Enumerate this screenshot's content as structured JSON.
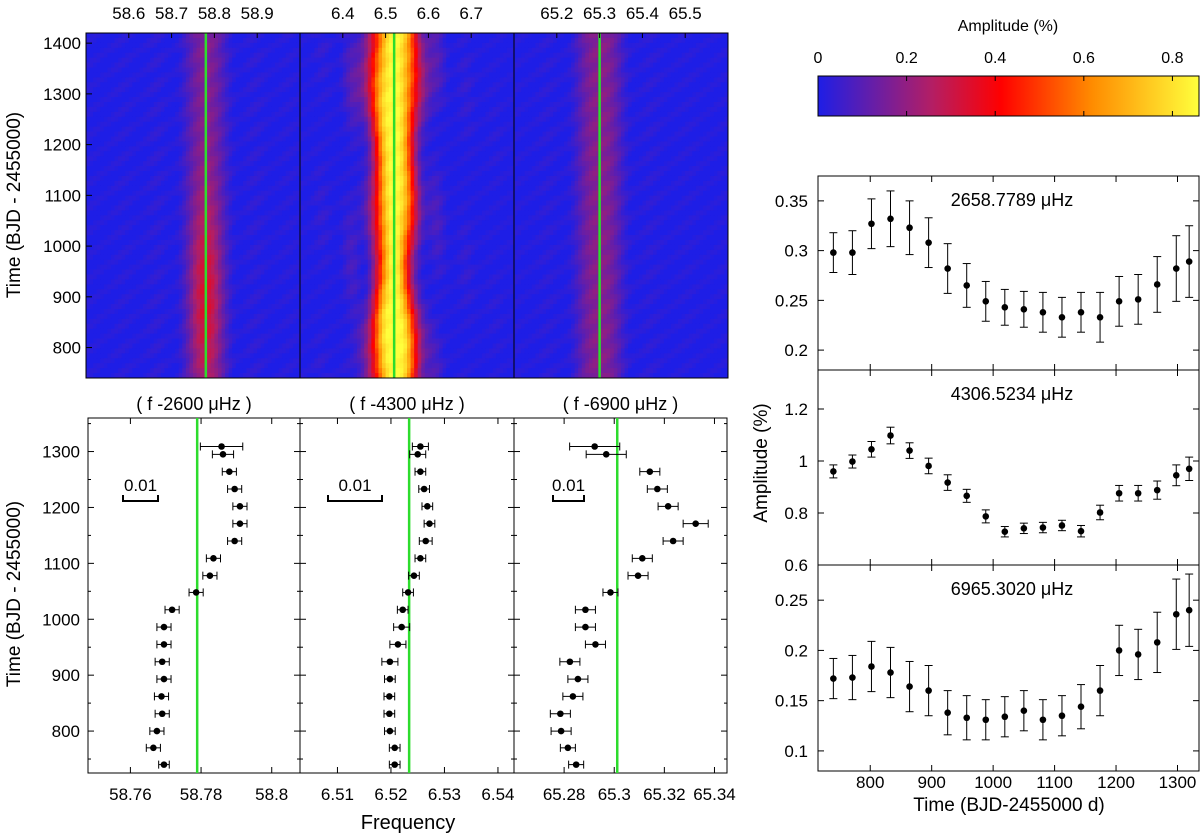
{
  "figure": {
    "left_ylabel_top": "Time (BJD - 2455000)",
    "left_ylabel_bottom": "Time (BJD - 2455000)",
    "bottom_xlabel": "Frequency",
    "right_ylabel": "Amplitude (%)",
    "right_xlabel": "Time (BJD-2455000 d)",
    "colorbar": {
      "title": "Amplitude (%)",
      "ticks": [
        "0",
        "0.2",
        "0.4",
        "0.6",
        "0.8"
      ],
      "range": [
        0,
        0.86
      ],
      "colors": {
        "low": "#1e1ee6",
        "mid1": "#b41e64",
        "mid2": "#ff0000",
        "mid3": "#ff8c00",
        "high": "#ffff3c"
      }
    },
    "line_color": "#2ddc2d"
  },
  "chart_data": [
    {
      "type": "heatmap",
      "panel": "heatmap-1",
      "x_ticks": [
        "58.6",
        "58.7",
        "58.8",
        "58.9"
      ],
      "xlim": [
        58.5,
        59.0
      ],
      "y_ticks": [
        "1400",
        "1300",
        "1200",
        "1100",
        "1000",
        "900",
        "800"
      ],
      "ylim": [
        740,
        1420
      ],
      "peak_frequency": 58.78,
      "peak_amplitude": 0.33
    },
    {
      "type": "heatmap",
      "panel": "heatmap-2",
      "x_ticks": [
        "6.4",
        "6.5",
        "6.6",
        "6.7"
      ],
      "xlim": [
        6.3,
        6.8
      ],
      "peak_frequency": 6.52,
      "peak_amplitude": 0.86
    },
    {
      "type": "heatmap",
      "panel": "heatmap-3",
      "x_ticks": [
        "65.2",
        "65.3",
        "65.4",
        "65.5"
      ],
      "xlim": [
        65.1,
        65.6
      ],
      "peak_frequency": 65.3,
      "peak_amplitude": 0.22
    },
    {
      "type": "scatter",
      "panel": "freq-1",
      "title": "( f -2600 μHz )",
      "x_ticks": [
        "58.76",
        "58.78",
        "58.8"
      ],
      "xlim": [
        58.748,
        58.808
      ],
      "y_ticks": [
        "1300",
        "1200",
        "1100",
        "1000",
        "900",
        "800"
      ],
      "ylim": [
        725,
        1360
      ],
      "line_x": 58.7789,
      "scale_label": "0.01",
      "time": [
        740,
        770,
        800,
        831,
        862,
        893,
        924,
        955,
        986,
        1017,
        1048,
        1078,
        1109,
        1140,
        1171,
        1202,
        1233,
        1264,
        1295,
        1309
      ],
      "freq": [
        58.7695,
        58.7665,
        58.7675,
        58.769,
        58.7688,
        58.7695,
        58.769,
        58.7695,
        58.7695,
        58.7718,
        58.7786,
        58.7825,
        58.7835,
        58.7895,
        58.791,
        58.791,
        58.7895,
        58.788,
        58.7862,
        58.7858
      ],
      "err": [
        0.0015,
        0.002,
        0.002,
        0.002,
        0.002,
        0.002,
        0.002,
        0.002,
        0.002,
        0.002,
        0.002,
        0.002,
        0.002,
        0.002,
        0.002,
        0.002,
        0.002,
        0.002,
        0.003,
        0.006
      ]
    },
    {
      "type": "scatter",
      "panel": "freq-2",
      "title": "( f -4300 μHz )",
      "x_ticks": [
        "6.51",
        "6.52",
        "6.53",
        "6.54"
      ],
      "xlim": [
        6.503,
        6.543
      ],
      "ylim": [
        725,
        1360
      ],
      "line_x": 6.5234,
      "scale_label": "0.01",
      "time": [
        740,
        770,
        800,
        831,
        862,
        893,
        924,
        955,
        986,
        1017,
        1048,
        1078,
        1109,
        1140,
        1171,
        1202,
        1233,
        1264,
        1295,
        1309
      ],
      "freq": [
        6.5207,
        6.5207,
        6.5198,
        6.5197,
        6.5197,
        6.5198,
        6.5198,
        6.5213,
        6.522,
        6.5222,
        6.5232,
        6.5243,
        6.5255,
        6.5265,
        6.5272,
        6.5268,
        6.5262,
        6.5255,
        6.525,
        6.5255
      ],
      "err": [
        0.001,
        0.001,
        0.001,
        0.001,
        0.001,
        0.001,
        0.0015,
        0.0015,
        0.0015,
        0.001,
        0.001,
        0.001,
        0.001,
        0.0012,
        0.001,
        0.001,
        0.001,
        0.001,
        0.0015,
        0.0015
      ]
    },
    {
      "type": "scatter",
      "panel": "freq-3",
      "title": "( f -6900 μHz )",
      "x_ticks": [
        "65.28",
        "65.3",
        "65.32",
        "65.34"
      ],
      "xlim": [
        65.26,
        65.345
      ],
      "ylim": [
        725,
        1360
      ],
      "line_x": 65.3012,
      "scale_label": "0.01",
      "time": [
        740,
        770,
        800,
        831,
        862,
        893,
        924,
        955,
        986,
        1017,
        1048,
        1078,
        1109,
        1140,
        1171,
        1202,
        1233,
        1264,
        1295,
        1309
      ],
      "freq": [
        65.2848,
        65.2815,
        65.2788,
        65.2785,
        65.2835,
        65.2855,
        65.2823,
        65.2925,
        65.2885,
        65.2885,
        65.2985,
        65.3095,
        65.3112,
        65.3235,
        65.3325,
        65.3215,
        65.3172,
        65.3142,
        65.2968,
        65.2922
      ],
      "err": [
        0.003,
        0.003,
        0.004,
        0.004,
        0.004,
        0.004,
        0.004,
        0.004,
        0.004,
        0.004,
        0.003,
        0.004,
        0.004,
        0.004,
        0.005,
        0.004,
        0.004,
        0.004,
        0.008,
        0.01
      ]
    },
    {
      "type": "scatter",
      "panel": "amp-1",
      "title": "2658.7789 μHz",
      "y_ticks": [
        "0.35",
        "0.3",
        "0.25",
        "0.2"
      ],
      "ylim": [
        0.18,
        0.375
      ],
      "xlim": [
        715,
        1335
      ],
      "time": [
        740,
        771,
        802,
        833,
        864,
        895,
        926,
        957,
        988,
        1019,
        1050,
        1081,
        1112,
        1143,
        1174,
        1205,
        1236,
        1267,
        1298,
        1319
      ],
      "amp": [
        0.298,
        0.298,
        0.327,
        0.332,
        0.323,
        0.308,
        0.282,
        0.265,
        0.249,
        0.243,
        0.241,
        0.238,
        0.233,
        0.238,
        0.233,
        0.249,
        0.251,
        0.266,
        0.282,
        0.289
      ],
      "err": [
        0.02,
        0.022,
        0.025,
        0.028,
        0.027,
        0.025,
        0.025,
        0.022,
        0.02,
        0.018,
        0.018,
        0.02,
        0.02,
        0.02,
        0.025,
        0.025,
        0.025,
        0.028,
        0.033,
        0.036
      ]
    },
    {
      "type": "scatter",
      "panel": "amp-2",
      "title": "4306.5234 μHz",
      "y_ticks": [
        "1.2",
        "1",
        "0.8",
        "0.6"
      ],
      "ylim": [
        0.6,
        1.35
      ],
      "xlim": [
        715,
        1335
      ],
      "time": [
        740,
        771,
        802,
        833,
        864,
        895,
        926,
        957,
        988,
        1019,
        1050,
        1081,
        1112,
        1143,
        1174,
        1205,
        1236,
        1267,
        1298,
        1319
      ],
      "amp": [
        0.96,
        0.998,
        1.045,
        1.098,
        1.04,
        0.981,
        0.917,
        0.866,
        0.787,
        0.728,
        0.741,
        0.744,
        0.752,
        0.73,
        0.802,
        0.876,
        0.876,
        0.888,
        0.945,
        0.97
      ],
      "err": [
        0.025,
        0.025,
        0.03,
        0.032,
        0.03,
        0.03,
        0.03,
        0.025,
        0.025,
        0.02,
        0.02,
        0.02,
        0.02,
        0.022,
        0.028,
        0.03,
        0.03,
        0.035,
        0.04,
        0.045
      ]
    },
    {
      "type": "scatter",
      "panel": "amp-3",
      "title": "6965.3020 μHz",
      "y_ticks": [
        "0.25",
        "0.2",
        "0.15",
        "0.1"
      ],
      "ylim": [
        0.08,
        0.285
      ],
      "x_ticks": [
        "800",
        "900",
        "1000",
        "1100",
        "1200",
        "1300"
      ],
      "xlim": [
        715,
        1335
      ],
      "time": [
        740,
        771,
        802,
        833,
        864,
        895,
        926,
        957,
        988,
        1019,
        1050,
        1081,
        1112,
        1143,
        1174,
        1205,
        1236,
        1267,
        1298,
        1319
      ],
      "amp": [
        0.172,
        0.173,
        0.184,
        0.178,
        0.164,
        0.16,
        0.138,
        0.133,
        0.131,
        0.134,
        0.14,
        0.131,
        0.135,
        0.144,
        0.16,
        0.2,
        0.196,
        0.208,
        0.236,
        0.24
      ],
      "err": [
        0.02,
        0.022,
        0.025,
        0.025,
        0.025,
        0.025,
        0.022,
        0.022,
        0.02,
        0.02,
        0.02,
        0.02,
        0.02,
        0.022,
        0.025,
        0.025,
        0.025,
        0.03,
        0.035,
        0.036
      ]
    }
  ]
}
